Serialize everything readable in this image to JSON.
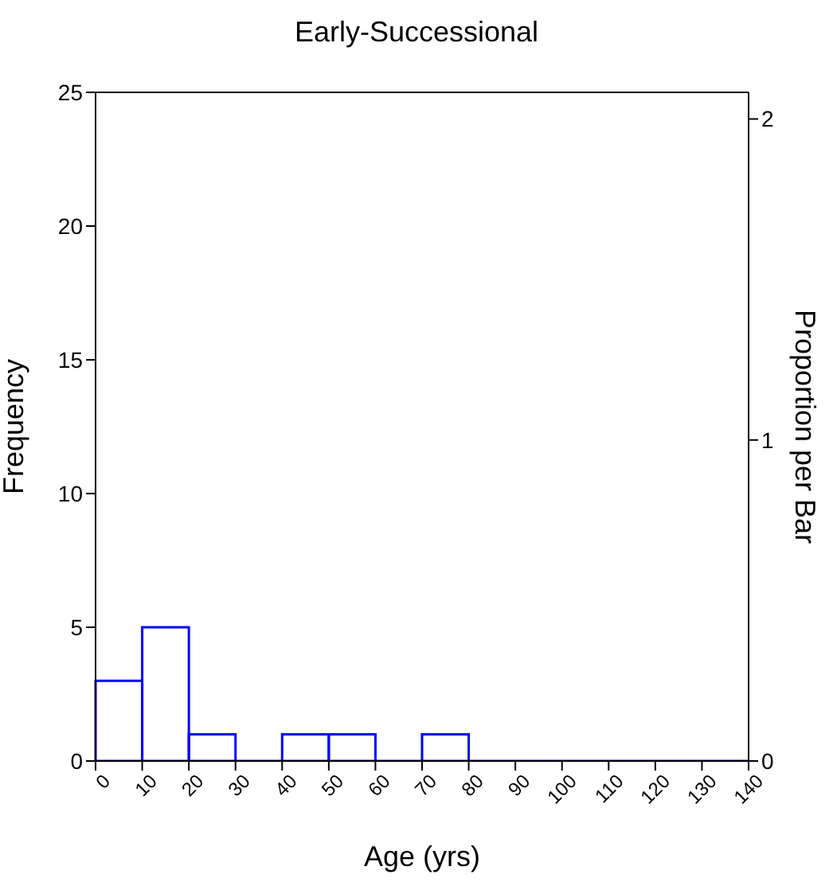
{
  "chart_data": {
    "type": "histogram",
    "title": "Early-Successional",
    "xlabel": "Age (yrs)",
    "ylabel": "Frequency",
    "y2label": "Proportion per Bar",
    "bins": [
      0,
      10,
      20,
      30,
      40,
      50,
      60,
      70,
      80,
      90,
      100,
      110,
      120,
      130,
      140
    ],
    "values": [
      3,
      5,
      1,
      0,
      1,
      1,
      0,
      1,
      0,
      0,
      0,
      0,
      0,
      0
    ],
    "color": "#0000ff",
    "xlim": [
      0,
      140
    ],
    "xticks": [
      0,
      10,
      20,
      30,
      40,
      50,
      60,
      70,
      80,
      90,
      100,
      110,
      120,
      130,
      140
    ],
    "ylim": [
      0,
      25
    ],
    "yticks": [
      0,
      5,
      10,
      15,
      20,
      25
    ],
    "y2lim": [
      0,
      2.083
    ],
    "y2ticks": [
      0,
      1,
      2
    ],
    "grid": false
  }
}
